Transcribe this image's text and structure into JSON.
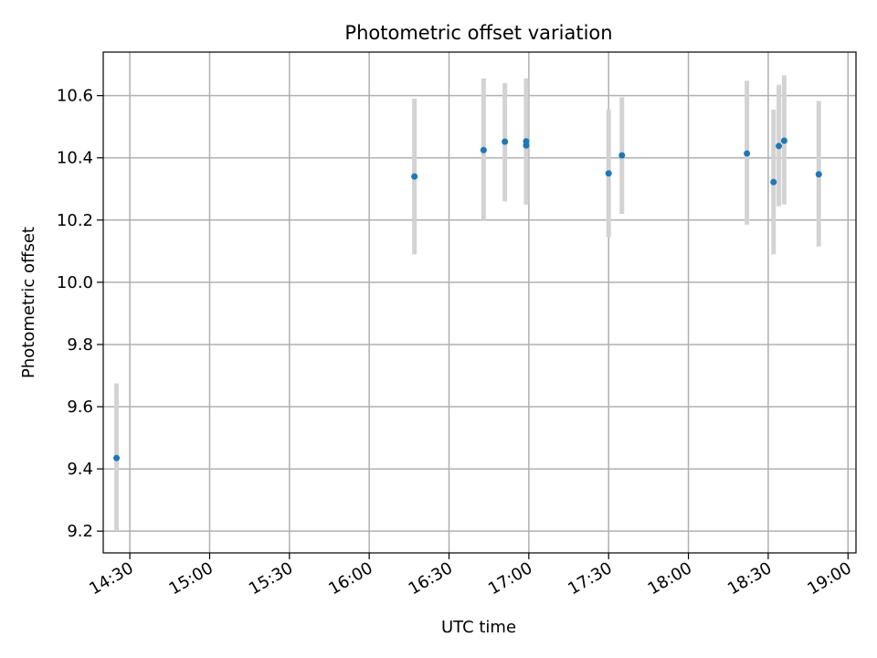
{
  "chart_data": {
    "type": "scatter",
    "title": "Photometric offset variation",
    "xlabel": "UTC time",
    "ylabel": "Photometric offset",
    "x_axis_type": "time",
    "xlim": [
      "14:20",
      "19:03"
    ],
    "ylim": [
      9.13,
      10.74
    ],
    "x_ticks": [
      "14:30",
      "15:00",
      "15:30",
      "16:00",
      "16:30",
      "17:00",
      "17:30",
      "18:00",
      "18:30",
      "19:00"
    ],
    "y_ticks": [
      9.2,
      9.4,
      9.6,
      9.8,
      10.0,
      10.2,
      10.4,
      10.6
    ],
    "grid": true,
    "legend": "none",
    "point_color": "#1f77b4",
    "errorbar_color": "#d3d3d3",
    "series": [
      {
        "points": [
          {
            "x": "14:25",
            "y": 9.435,
            "ymin": 9.2,
            "ymax": 9.675
          },
          {
            "x": "16:17",
            "y": 10.34,
            "ymin": 10.09,
            "ymax": 10.59
          },
          {
            "x": "16:43",
            "y": 10.425,
            "ymin": 10.2,
            "ymax": 10.655
          },
          {
            "x": "16:51",
            "y": 10.452,
            "ymin": 10.26,
            "ymax": 10.64
          },
          {
            "x": "16:59",
            "y": 10.44,
            "ymin": 10.25,
            "ymax": 10.655
          },
          {
            "x": "16:59",
            "y": 10.453,
            "ymin": 10.25,
            "ymax": 10.655
          },
          {
            "x": "17:30",
            "y": 10.35,
            "ymin": 10.145,
            "ymax": 10.555
          },
          {
            "x": "17:35",
            "y": 10.408,
            "ymin": 10.22,
            "ymax": 10.595
          },
          {
            "x": "18:22",
            "y": 10.414,
            "ymin": 10.185,
            "ymax": 10.648
          },
          {
            "x": "18:32",
            "y": 10.322,
            "ymin": 10.09,
            "ymax": 10.555
          },
          {
            "x": "18:34",
            "y": 10.438,
            "ymin": 10.245,
            "ymax": 10.635
          },
          {
            "x": "18:36",
            "y": 10.455,
            "ymin": 10.25,
            "ymax": 10.665
          },
          {
            "x": "18:49",
            "y": 10.347,
            "ymin": 10.115,
            "ymax": 10.583
          }
        ]
      }
    ]
  }
}
